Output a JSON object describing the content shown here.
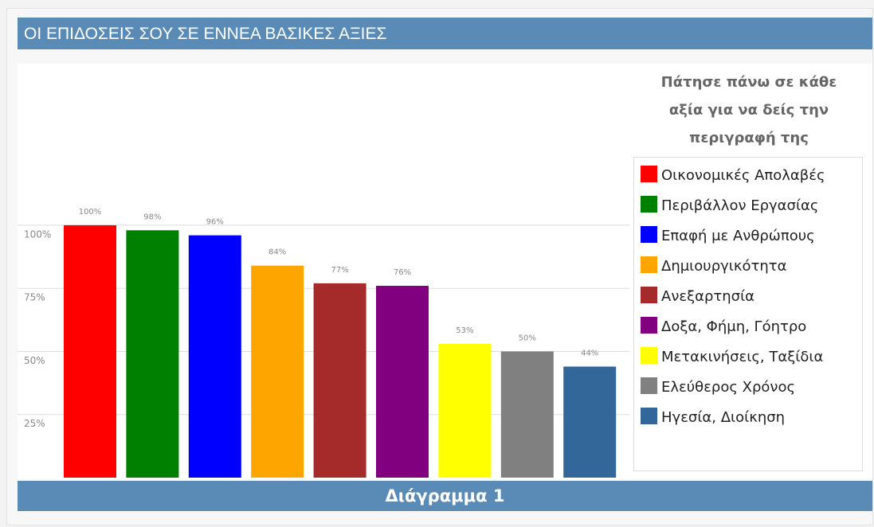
{
  "chart_data": {
    "type": "bar",
    "title": "ΟΙ ΕΠΙΔΟΣΕΙΣ ΣΟΥ ΣΕ ΕΝΝΕΑ ΒΑΣΙΚΕΣ ΑΞΙΕΣ",
    "legend_note": "Πάτησε πάνω σε κάθε αξία για να δείς την περιγραφή της",
    "caption": "Διάγραμμα 1",
    "categories": [
      "Οικονομικές Απολαβές",
      "Περιβάλλον Εργασίας",
      "Επαφή με Ανθρώπους",
      "Δημιουργικότητα",
      "Ανεξαρτησία",
      "Δοξα, Φήμη, Γόητρο",
      "Μετακινήσεις, Ταξίδια",
      "Ελεύθερος Χρόνος",
      "Ηγεσία, Διοίκηση"
    ],
    "values": [
      100,
      98,
      96,
      84,
      77,
      76,
      53,
      50,
      44
    ],
    "value_labels": [
      "100%",
      "98%",
      "96%",
      "84%",
      "77%",
      "76%",
      "53%",
      "50%",
      "44%"
    ],
    "colors": [
      "#ff0000",
      "#008000",
      "#0000ff",
      "#ffa500",
      "#a52a2a",
      "#800080",
      "#ffff00",
      "#808080",
      "#336699"
    ],
    "ylim": [
      0,
      164
    ],
    "yticks": [
      {
        "value": 25,
        "label": "25%"
      },
      {
        "value": 50,
        "label": "50%"
      },
      {
        "value": 75,
        "label": "75%"
      },
      {
        "value": 100,
        "label": "100%"
      }
    ],
    "grid": true,
    "legend": "right"
  }
}
